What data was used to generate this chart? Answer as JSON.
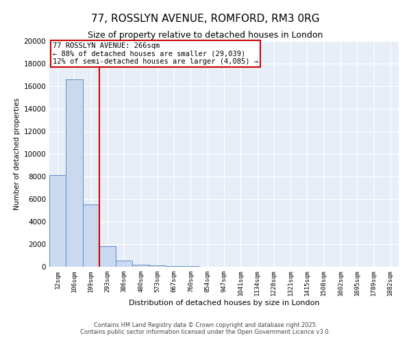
{
  "title": "77, ROSSLYN AVENUE, ROMFORD, RM3 0RG",
  "subtitle": "Size of property relative to detached houses in London",
  "xlabel": "Distribution of detached houses by size in London",
  "ylabel": "Number of detached properties",
  "bar_color": "#cad9ed",
  "bar_edge_color": "#5b8fc9",
  "background_color": "#e8eef8",
  "grid_color": "#ffffff",
  "categories": [
    "12sqm",
    "106sqm",
    "199sqm",
    "293sqm",
    "386sqm",
    "480sqm",
    "573sqm",
    "667sqm",
    "760sqm",
    "854sqm",
    "947sqm",
    "1041sqm",
    "1134sqm",
    "1228sqm",
    "1321sqm",
    "1415sqm",
    "1508sqm",
    "1602sqm",
    "1695sqm",
    "1789sqm",
    "1882sqm"
  ],
  "values": [
    8100,
    16600,
    5500,
    1820,
    520,
    175,
    120,
    80,
    55,
    30,
    15,
    8,
    4,
    2,
    1,
    1,
    0,
    0,
    0,
    0,
    0
  ],
  "ylim": [
    0,
    20000
  ],
  "yticks": [
    0,
    2000,
    4000,
    6000,
    8000,
    10000,
    12000,
    14000,
    16000,
    18000,
    20000
  ],
  "vline_x": 2.5,
  "vline_color": "#cc0000",
  "annotation_text": "77 ROSSLYN AVENUE: 266sqm\n← 88% of detached houses are smaller (29,039)\n12% of semi-detached houses are larger (4,085) →",
  "annotation_box_color": "#cc0000",
  "footer_line1": "Contains HM Land Registry data © Crown copyright and database right 2025.",
  "footer_line2": "Contains public sector information licensed under the Open Government Licence v3.0."
}
